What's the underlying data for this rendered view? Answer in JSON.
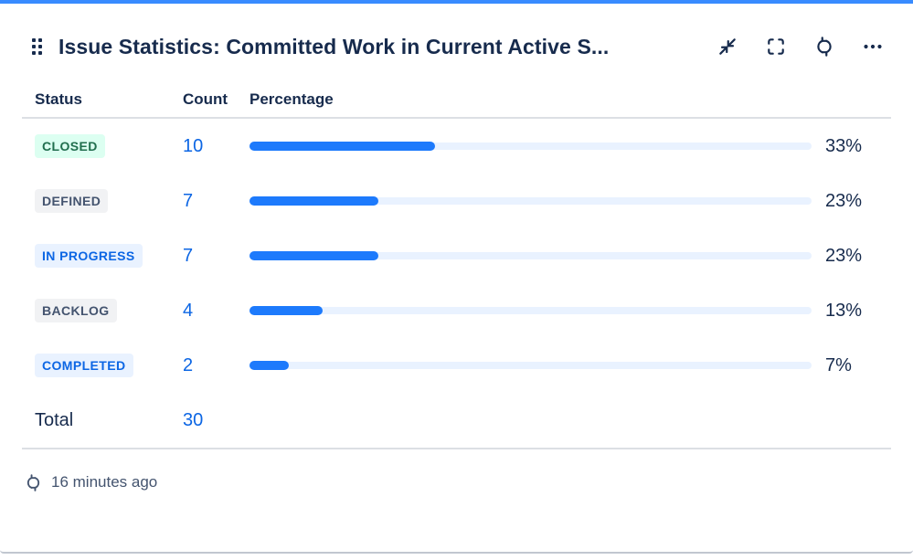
{
  "header": {
    "title": "Issue Statistics: Committed Work in Current Active S...",
    "drag_handle": "drag-handle",
    "actions": [
      "minimize-icon",
      "fullscreen-icon",
      "refresh-icon",
      "more-options-icon"
    ]
  },
  "table": {
    "columns": [
      "Status",
      "Count",
      "Percentage"
    ],
    "rows": [
      {
        "status": "CLOSED",
        "variant": "success",
        "count": "10",
        "percent": 33,
        "percent_label": "33%"
      },
      {
        "status": "DEFINED",
        "variant": "neutral",
        "count": "7",
        "percent": 23,
        "percent_label": "23%"
      },
      {
        "status": "IN PROGRESS",
        "variant": "info",
        "count": "7",
        "percent": 23,
        "percent_label": "23%"
      },
      {
        "status": "BACKLOG",
        "variant": "neutral",
        "count": "4",
        "percent": 13,
        "percent_label": "13%"
      },
      {
        "status": "COMPLETED",
        "variant": "info",
        "count": "2",
        "percent": 7,
        "percent_label": "7%"
      }
    ],
    "total_label": "Total",
    "total_count": "30"
  },
  "footer": {
    "refresh_icon": "refresh-icon",
    "last_refreshed": "16 minutes ago"
  },
  "colors": {
    "accent": "#388BFF",
    "title_text": "#172B4D",
    "link_blue": "#0C66E4",
    "bar_fill": "#1D7AFC",
    "bar_track": "#E9F2FF",
    "badge_success_bg": "#DCFFF1",
    "badge_success_text": "#216E4E",
    "badge_neutral_bg": "#F1F2F4",
    "badge_neutral_text": "#44546F",
    "badge_info_bg": "#E9F2FF",
    "badge_info_text": "#0C66E4",
    "divider": "#DCDFE4",
    "footer_text": "#44546F"
  },
  "chart_data": {
    "type": "bar",
    "orientation": "horizontal",
    "title": "Issue Statistics: Committed Work in Current Active S...",
    "categories": [
      "CLOSED",
      "DEFINED",
      "IN PROGRESS",
      "BACKLOG",
      "COMPLETED"
    ],
    "values": [
      10,
      7,
      7,
      4,
      2
    ],
    "percentages": [
      33,
      23,
      23,
      13,
      7
    ],
    "total": 30,
    "xlim": [
      0,
      100
    ],
    "legend": "none",
    "grid": "off"
  }
}
